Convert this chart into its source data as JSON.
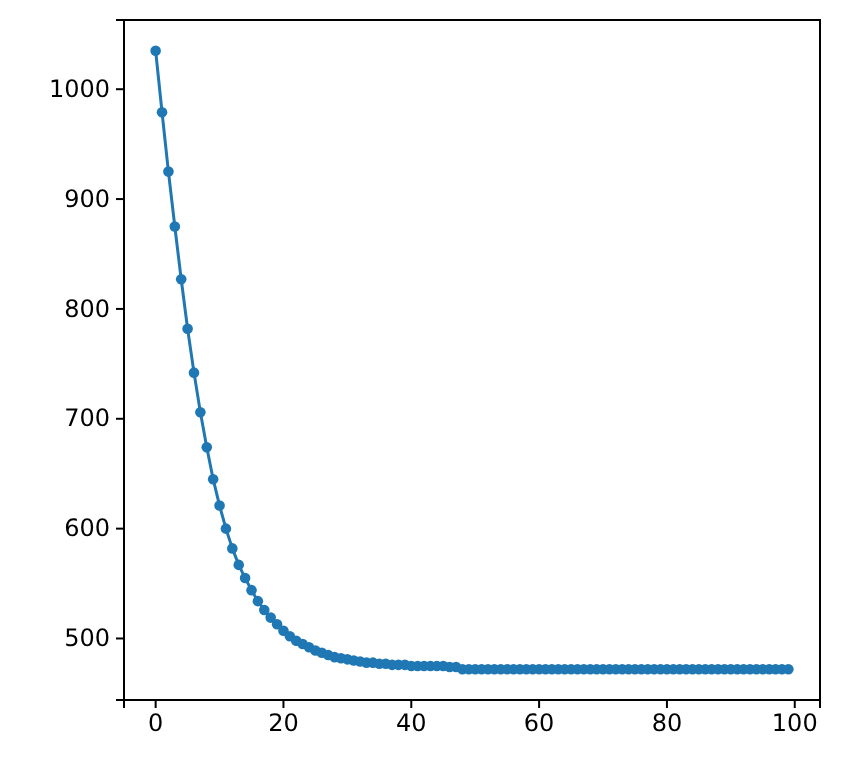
{
  "chart_data": {
    "type": "line",
    "xlim": [
      -4.95,
      103.95
    ],
    "ylim": [
      444,
      1063
    ],
    "xticks": [
      0,
      20,
      40,
      60,
      80,
      100
    ],
    "yticks": [
      500,
      600,
      700,
      800,
      900,
      1000
    ],
    "marker": "circle",
    "grid": false,
    "x": [
      0,
      1,
      2,
      3,
      4,
      5,
      6,
      7,
      8,
      9,
      10,
      11,
      12,
      13,
      14,
      15,
      16,
      17,
      18,
      19,
      20,
      21,
      22,
      23,
      24,
      25,
      26,
      27,
      28,
      29,
      30,
      31,
      32,
      33,
      34,
      35,
      36,
      37,
      38,
      39,
      40,
      41,
      42,
      43,
      44,
      45,
      46,
      47,
      48,
      49,
      50,
      51,
      52,
      53,
      54,
      55,
      56,
      57,
      58,
      59,
      60,
      61,
      62,
      63,
      64,
      65,
      66,
      67,
      68,
      69,
      70,
      71,
      72,
      73,
      74,
      75,
      76,
      77,
      78,
      79,
      80,
      81,
      82,
      83,
      84,
      85,
      86,
      87,
      88,
      89,
      90,
      91,
      92,
      93,
      94,
      95,
      96,
      97,
      98,
      99
    ],
    "series": [
      {
        "color": "#1f77b4",
        "values": [
          1035,
          979,
          925,
          875,
          827,
          782,
          742,
          706,
          674,
          645,
          621,
          600,
          582,
          567,
          555,
          544,
          534,
          526,
          519,
          513,
          507,
          502,
          498,
          495,
          492,
          489,
          487,
          485,
          483,
          482,
          481,
          480,
          479,
          478,
          478,
          477,
          477,
          476,
          476,
          476,
          475,
          475,
          475,
          475,
          475,
          475,
          474,
          474,
          472,
          472,
          472,
          472,
          472,
          472,
          472,
          472,
          472,
          472,
          472,
          472,
          472,
          472,
          472,
          472,
          472,
          472,
          472,
          472,
          472,
          472,
          472,
          472,
          472,
          472,
          472,
          472,
          472,
          472,
          472,
          472,
          472,
          472,
          472,
          472,
          472,
          472,
          472,
          472,
          472,
          472,
          472,
          472,
          472,
          472,
          472,
          472,
          472,
          472,
          472,
          472
        ]
      }
    ]
  }
}
